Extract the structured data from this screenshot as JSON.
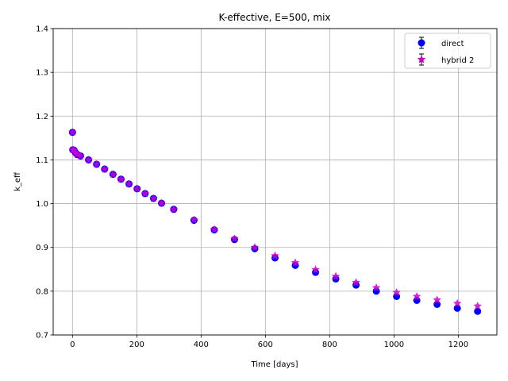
{
  "chart_data": {
    "type": "scatter",
    "title": "K-effective, E=500, mix",
    "xlabel": "Time [days]",
    "ylabel": "k_eff",
    "xlim": [
      -60,
      1320
    ],
    "ylim": [
      0.7,
      1.4
    ],
    "xticks": [
      0,
      200,
      400,
      600,
      800,
      1000,
      1200
    ],
    "yticks": [
      0.7,
      0.8,
      0.9,
      1.0,
      1.1,
      1.2,
      1.3,
      1.4
    ],
    "xtick_labels": [
      "0",
      "200",
      "400",
      "600",
      "800",
      "1000",
      "1200"
    ],
    "ytick_labels": [
      "0.7",
      "0.8",
      "0.9",
      "1.0",
      "1.1",
      "1.2",
      "1.3",
      "1.4"
    ],
    "grid": true,
    "legend_position": "top-right",
    "series": [
      {
        "name": "direct",
        "marker": "circle",
        "color": "#0000ff",
        "x": [
          0,
          1,
          5,
          10,
          15,
          25,
          50,
          75,
          100,
          126,
          151,
          176,
          201,
          226,
          252,
          277,
          315,
          378,
          441,
          504,
          567,
          630,
          693,
          756,
          819,
          882,
          945,
          1008,
          1071,
          1134,
          1197,
          1260
        ],
        "y": [
          1.163,
          1.123,
          1.122,
          1.116,
          1.112,
          1.109,
          1.1,
          1.09,
          1.079,
          1.067,
          1.056,
          1.045,
          1.034,
          1.023,
          1.012,
          1.001,
          0.987,
          0.962,
          0.94,
          0.918,
          0.897,
          0.876,
          0.859,
          0.843,
          0.828,
          0.814,
          0.8,
          0.788,
          0.779,
          0.77,
          0.761,
          0.754
        ]
      },
      {
        "name": "hybrid 2",
        "marker": "star",
        "color": "#cc00cc",
        "x": [
          0,
          1,
          5,
          10,
          15,
          25,
          50,
          75,
          100,
          126,
          151,
          176,
          201,
          226,
          252,
          277,
          315,
          378,
          441,
          504,
          567,
          630,
          693,
          756,
          819,
          882,
          945,
          1008,
          1071,
          1134,
          1197,
          1260
        ],
        "y": [
          1.163,
          1.123,
          1.122,
          1.116,
          1.112,
          1.109,
          1.1,
          1.09,
          1.079,
          1.067,
          1.056,
          1.045,
          1.034,
          1.023,
          1.012,
          1.001,
          0.987,
          0.963,
          0.941,
          0.92,
          0.9,
          0.881,
          0.865,
          0.849,
          0.834,
          0.82,
          0.808,
          0.797,
          0.788,
          0.78,
          0.772,
          0.766
        ]
      }
    ]
  }
}
